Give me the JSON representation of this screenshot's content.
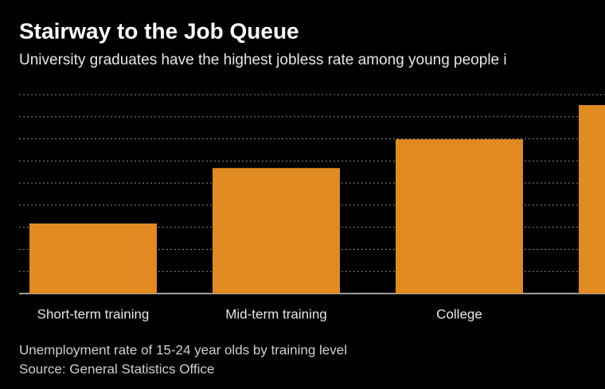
{
  "chart_data": {
    "type": "bar",
    "title": "Stairway to the Job Queue",
    "subtitle": "University graduates have the highest jobless rate among young people i",
    "categories": [
      "Short-term training",
      "Mid-term training",
      "College",
      null
    ],
    "values": [
      3.17,
      5.68,
      6.98,
      8.53
    ],
    "color": "#e08a21",
    "ylim": [
      0,
      9
    ],
    "yticks": [
      0,
      1,
      2,
      3,
      4,
      5,
      6,
      7,
      8,
      9
    ],
    "grid": true,
    "notes": [
      "Unemployment rate of 15-24 year olds by training level",
      "Source: General Statistics Office"
    ]
  }
}
